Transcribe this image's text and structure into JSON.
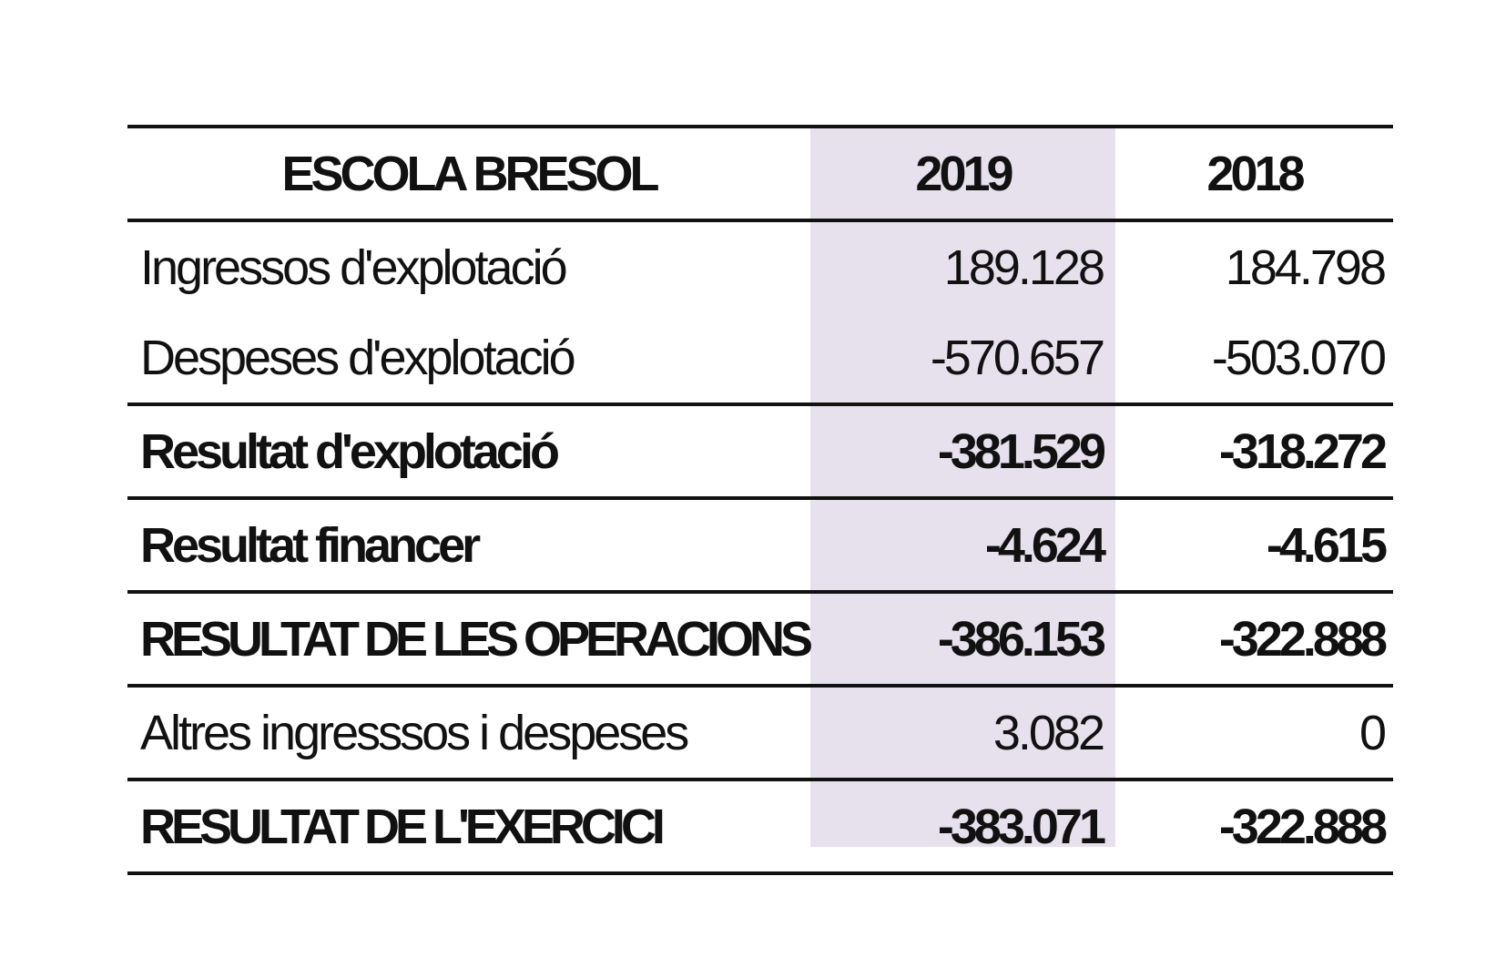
{
  "header": {
    "title": "ESCOLA BRESOL",
    "col_2019": "2019",
    "col_2018": "2018"
  },
  "rows": [
    {
      "label": "Ingressos d'explotació",
      "v2019": "189.128",
      "v2018": "184.798"
    },
    {
      "label": "Despeses d'explotació",
      "v2019": "-570.657",
      "v2018": "-503.070"
    },
    {
      "label": "Resultat d'explotació",
      "v2019": "-381.529",
      "v2018": "-318.272"
    },
    {
      "label": "Resultat financer",
      "v2019": "-4.624",
      "v2018": "-4.615"
    },
    {
      "label": "RESULTAT DE LES OPERACIONS",
      "v2019": "-386.153",
      "v2018": "-322.888"
    },
    {
      "label": "Altres ingresssos i despeses",
      "v2019": "3.082",
      "v2018": "0"
    },
    {
      "label": "RESULTAT DE L'EXERCICI",
      "v2019": "-383.071",
      "v2018": "-322.888"
    }
  ],
  "colors": {
    "highlight_column": "#e6e1ec",
    "rule": "#111111"
  }
}
